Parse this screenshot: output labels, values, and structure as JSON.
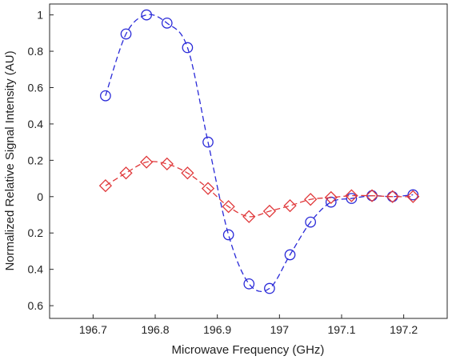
{
  "chart_data": {
    "type": "line",
    "title": "",
    "xlabel": "Microwave Frequency (GHz)",
    "ylabel": "Normalized Relative Signal Intensity (AU)",
    "xlim": [
      196.63,
      197.27
    ],
    "ylim": [
      -0.67,
      1.06
    ],
    "grid": false,
    "legend": "none",
    "x_ticks": [
      {
        "value": 196.7,
        "label": "196.7"
      },
      {
        "value": 196.8,
        "label": "196.8"
      },
      {
        "value": 196.9,
        "label": "196.9"
      },
      {
        "value": 197.0,
        "label": "197"
      },
      {
        "value": 197.1,
        "label": "197.1"
      },
      {
        "value": 197.2,
        "label": "197.2"
      }
    ],
    "y_ticks": [
      {
        "value": 1.0,
        "label": "1"
      },
      {
        "value": 0.8,
        "label": "0.8"
      },
      {
        "value": 0.6,
        "label": "0.6"
      },
      {
        "value": 0.4,
        "label": "0.4"
      },
      {
        "value": 0.2,
        "label": "0.2"
      },
      {
        "value": 0.0,
        "label": "0"
      },
      {
        "value": -0.2,
        "label": "0.2"
      },
      {
        "value": -0.4,
        "label": "0.4"
      },
      {
        "value": -0.6,
        "label": "0.6"
      }
    ],
    "x": [
      196.72,
      196.753,
      196.786,
      196.819,
      196.852,
      196.885,
      196.918,
      196.951,
      196.984,
      197.017,
      197.05,
      197.083,
      197.116,
      197.149,
      197.182,
      197.215
    ],
    "series": [
      {
        "color": "#2a2ad8",
        "marker": "circle",
        "line": "dashed",
        "values": [
          0.555,
          0.895,
          1.0,
          0.955,
          0.82,
          0.3,
          -0.21,
          -0.48,
          -0.505,
          -0.32,
          -0.14,
          -0.03,
          -0.01,
          0.005,
          0.0,
          0.01
        ]
      },
      {
        "color": "#e0383a",
        "marker": "diamond",
        "line": "dashed",
        "values": [
          0.06,
          0.13,
          0.19,
          0.18,
          0.13,
          0.045,
          -0.055,
          -0.11,
          -0.08,
          -0.05,
          -0.015,
          -0.005,
          0.005,
          0.005,
          0.0,
          0.0
        ]
      }
    ]
  }
}
